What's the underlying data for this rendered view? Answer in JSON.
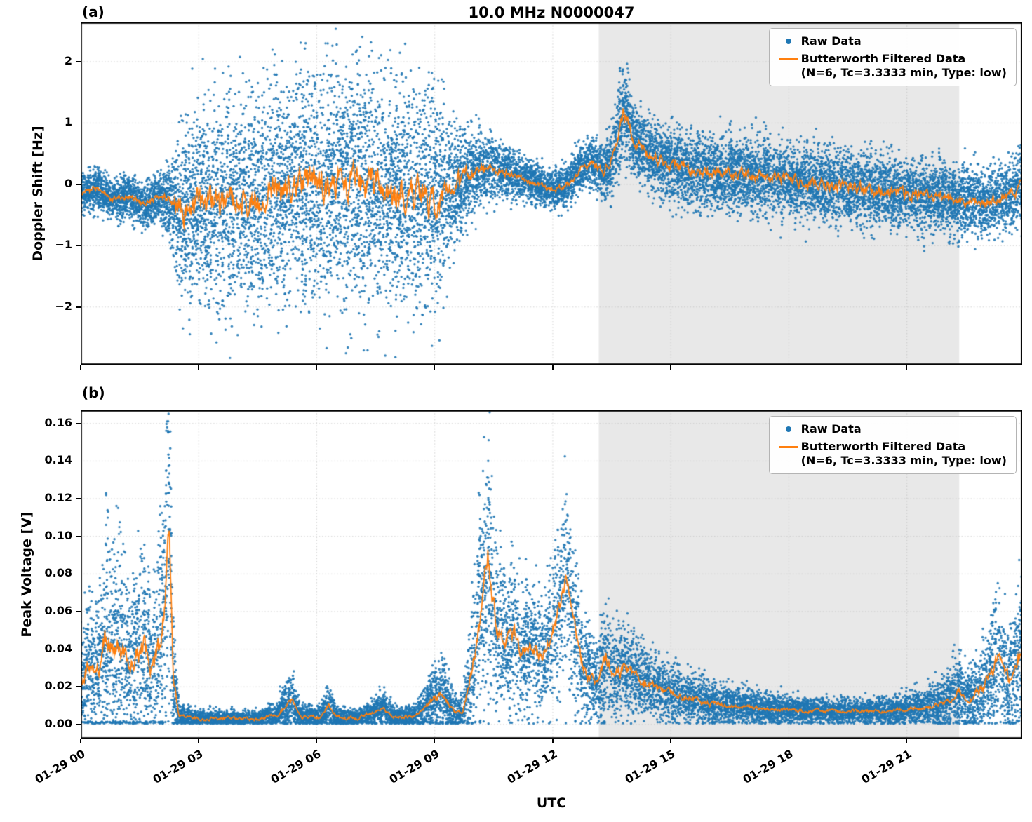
{
  "figure": {
    "background": "#ffffff"
  },
  "chart_data": [
    {
      "type": "scatter+line",
      "panel_label": "(a)",
      "title": "10.0 MHz N0000047",
      "ylabel": "Doppler Shift [Hz]",
      "ylim": [
        -2.94,
        2.64
      ],
      "xlim": [
        0,
        23.93
      ],
      "yticks": [
        {
          "v": -2,
          "label": "−2"
        },
        {
          "v": -1,
          "label": "−1"
        },
        {
          "v": 0,
          "label": "0"
        },
        {
          "v": 1,
          "label": "1"
        },
        {
          "v": 2,
          "label": "2"
        }
      ],
      "xticks": [
        {
          "hour": 0,
          "label": "01-29 00"
        },
        {
          "hour": 3,
          "label": "01-29 03"
        },
        {
          "hour": 6,
          "label": "01-29 06"
        },
        {
          "hour": 9,
          "label": "01-29 09"
        },
        {
          "hour": 12,
          "label": "01-29 12"
        },
        {
          "hour": 15,
          "label": "01-29 15"
        },
        {
          "hour": 18,
          "label": "01-29 18"
        },
        {
          "hour": 21,
          "label": "01-29 21"
        }
      ],
      "show_x_labels": false,
      "shaded_region": {
        "start": 13.17,
        "end": 22.33,
        "color": "#e8e8e8"
      },
      "legend": {
        "raw_label": "Raw Data",
        "filtered_label": "Butterworth Filtered Data",
        "filtered_sublabel": "(N=6, Tc=3.3333 min, Type: low)"
      },
      "colors": {
        "raw": "#1f77b4",
        "filtered": "#ff7f0e"
      },
      "scatter_points": 16000,
      "marker_radius": 1.7,
      "seed": 1337,
      "line_step": 0.015,
      "line_jitter_scale": 0.4,
      "line_jitter_floor": 0.06,
      "value_floor": null,
      "envelope": [
        [
          0.0,
          -0.15,
          0.15
        ],
        [
          0.4,
          -0.05,
          0.18
        ],
        [
          0.8,
          -0.25,
          0.16
        ],
        [
          1.2,
          -0.18,
          0.18
        ],
        [
          1.6,
          -0.35,
          0.18
        ],
        [
          2.0,
          -0.2,
          0.2
        ],
        [
          2.3,
          -0.3,
          0.3
        ],
        [
          2.6,
          -0.45,
          0.7
        ],
        [
          3.0,
          -0.35,
          0.8
        ],
        [
          3.5,
          -0.3,
          0.85
        ],
        [
          4.0,
          -0.3,
          0.8
        ],
        [
          4.5,
          -0.2,
          0.8
        ],
        [
          5.0,
          -0.1,
          0.85
        ],
        [
          5.5,
          0.0,
          0.9
        ],
        [
          6.0,
          -0.05,
          0.95
        ],
        [
          6.5,
          0.0,
          0.9
        ],
        [
          7.0,
          -0.05,
          0.95
        ],
        [
          7.5,
          0.0,
          0.95
        ],
        [
          8.0,
          -0.1,
          0.9
        ],
        [
          8.5,
          -0.2,
          0.85
        ],
        [
          9.0,
          -0.25,
          0.8
        ],
        [
          9.3,
          -0.15,
          0.65
        ],
        [
          9.6,
          0.05,
          0.45
        ],
        [
          10.0,
          0.2,
          0.32
        ],
        [
          10.4,
          0.25,
          0.26
        ],
        [
          10.8,
          0.2,
          0.22
        ],
        [
          11.2,
          0.1,
          0.18
        ],
        [
          11.6,
          0.0,
          0.16
        ],
        [
          12.0,
          -0.1,
          0.15
        ],
        [
          12.4,
          0.0,
          0.17
        ],
        [
          12.7,
          0.25,
          0.2
        ],
        [
          13.0,
          0.35,
          0.2
        ],
        [
          13.3,
          0.2,
          0.2
        ],
        [
          13.55,
          0.45,
          0.3
        ],
        [
          13.8,
          1.25,
          0.4
        ],
        [
          14.0,
          0.8,
          0.3
        ],
        [
          14.25,
          0.6,
          0.28
        ],
        [
          14.5,
          0.45,
          0.3
        ],
        [
          15.0,
          0.3,
          0.3
        ],
        [
          15.5,
          0.25,
          0.3
        ],
        [
          16.0,
          0.2,
          0.3
        ],
        [
          16.5,
          0.17,
          0.3
        ],
        [
          17.0,
          0.14,
          0.3
        ],
        [
          17.5,
          0.1,
          0.3
        ],
        [
          18.0,
          0.06,
          0.3
        ],
        [
          18.5,
          0.03,
          0.3
        ],
        [
          19.0,
          0.0,
          0.3
        ],
        [
          19.5,
          -0.05,
          0.3
        ],
        [
          20.0,
          -0.1,
          0.3
        ],
        [
          20.5,
          -0.12,
          0.3
        ],
        [
          21.0,
          -0.15,
          0.28
        ],
        [
          21.5,
          -0.18,
          0.28
        ],
        [
          22.0,
          -0.2,
          0.28
        ],
        [
          22.5,
          -0.25,
          0.27
        ],
        [
          23.0,
          -0.3,
          0.26
        ],
        [
          23.5,
          -0.2,
          0.28
        ],
        [
          23.93,
          -0.05,
          0.3
        ]
      ]
    },
    {
      "type": "scatter+line",
      "panel_label": "(b)",
      "xlabel": "UTC",
      "ylabel": "Peak Voltage [V]",
      "ylim": [
        -0.0075,
        0.167
      ],
      "xlim": [
        0,
        23.93
      ],
      "yticks": [
        {
          "v": 0.0,
          "label": "0.00"
        },
        {
          "v": 0.02,
          "label": "0.02"
        },
        {
          "v": 0.04,
          "label": "0.04"
        },
        {
          "v": 0.06,
          "label": "0.06"
        },
        {
          "v": 0.08,
          "label": "0.08"
        },
        {
          "v": 0.1,
          "label": "0.10"
        },
        {
          "v": 0.12,
          "label": "0.12"
        },
        {
          "v": 0.14,
          "label": "0.14"
        },
        {
          "v": 0.16,
          "label": "0.16"
        }
      ],
      "xticks": [
        {
          "hour": 0,
          "label": "01-29 00"
        },
        {
          "hour": 3,
          "label": "01-29 03"
        },
        {
          "hour": 6,
          "label": "01-29 06"
        },
        {
          "hour": 9,
          "label": "01-29 09"
        },
        {
          "hour": 12,
          "label": "01-29 12"
        },
        {
          "hour": 15,
          "label": "01-29 15"
        },
        {
          "hour": 18,
          "label": "01-29 18"
        },
        {
          "hour": 21,
          "label": "01-29 21"
        }
      ],
      "show_x_labels": true,
      "shaded_region": {
        "start": 13.17,
        "end": 22.33,
        "color": "#e8e8e8"
      },
      "legend": {
        "raw_label": "Raw Data",
        "filtered_label": "Butterworth Filtered Data",
        "filtered_sublabel": "(N=6, Tc=3.3333 min, Type: low)"
      },
      "colors": {
        "raw": "#1f77b4",
        "filtered": "#ff7f0e"
      },
      "scatter_points": 14000,
      "marker_radius": 1.7,
      "seed": 4242,
      "line_step": 0.015,
      "line_jitter_scale": 0.3,
      "line_jitter_floor": 0.0012,
      "value_floor": 0.0004,
      "envelope": [
        [
          0.0,
          0.02,
          0.015
        ],
        [
          0.2,
          0.03,
          0.02
        ],
        [
          0.45,
          0.028,
          0.02
        ],
        [
          0.6,
          0.045,
          0.028
        ],
        [
          0.8,
          0.04,
          0.028
        ],
        [
          1.0,
          0.045,
          0.03
        ],
        [
          1.2,
          0.03,
          0.02
        ],
        [
          1.4,
          0.035,
          0.025
        ],
        [
          1.6,
          0.04,
          0.028
        ],
        [
          1.8,
          0.03,
          0.02
        ],
        [
          2.0,
          0.04,
          0.03
        ],
        [
          2.15,
          0.07,
          0.04
        ],
        [
          2.25,
          0.105,
          0.045
        ],
        [
          2.35,
          0.025,
          0.018
        ],
        [
          2.5,
          0.0045,
          0.003
        ],
        [
          3.0,
          0.003,
          0.002
        ],
        [
          3.5,
          0.003,
          0.002
        ],
        [
          4.0,
          0.003,
          0.002
        ],
        [
          4.5,
          0.003,
          0.002
        ],
        [
          5.0,
          0.005,
          0.0035
        ],
        [
          5.35,
          0.013,
          0.008
        ],
        [
          5.6,
          0.004,
          0.003
        ],
        [
          6.1,
          0.004,
          0.003
        ],
        [
          6.3,
          0.01,
          0.006
        ],
        [
          6.5,
          0.004,
          0.003
        ],
        [
          7.0,
          0.003,
          0.002
        ],
        [
          7.7,
          0.009,
          0.005
        ],
        [
          7.95,
          0.004,
          0.003
        ],
        [
          8.5,
          0.004,
          0.003
        ],
        [
          8.95,
          0.013,
          0.008
        ],
        [
          9.2,
          0.017,
          0.01
        ],
        [
          9.45,
          0.007,
          0.005
        ],
        [
          9.7,
          0.006,
          0.004
        ],
        [
          9.95,
          0.03,
          0.018
        ],
        [
          10.15,
          0.06,
          0.03
        ],
        [
          10.35,
          0.088,
          0.033
        ],
        [
          10.55,
          0.055,
          0.022
        ],
        [
          10.8,
          0.042,
          0.017
        ],
        [
          11.0,
          0.05,
          0.02
        ],
        [
          11.2,
          0.038,
          0.015
        ],
        [
          11.45,
          0.042,
          0.017
        ],
        [
          11.7,
          0.035,
          0.015
        ],
        [
          11.95,
          0.045,
          0.018
        ],
        [
          12.15,
          0.06,
          0.022
        ],
        [
          12.33,
          0.082,
          0.026
        ],
        [
          12.5,
          0.055,
          0.02
        ],
        [
          12.7,
          0.035,
          0.015
        ],
        [
          12.95,
          0.025,
          0.012
        ],
        [
          13.15,
          0.02,
          0.011
        ],
        [
          13.35,
          0.035,
          0.017
        ],
        [
          13.55,
          0.025,
          0.012
        ],
        [
          13.8,
          0.03,
          0.013
        ],
        [
          14.05,
          0.026,
          0.011
        ],
        [
          14.35,
          0.022,
          0.01
        ],
        [
          14.7,
          0.019,
          0.009
        ],
        [
          15.0,
          0.017,
          0.008
        ],
        [
          15.5,
          0.014,
          0.007
        ],
        [
          16.0,
          0.011,
          0.006
        ],
        [
          16.5,
          0.01,
          0.005
        ],
        [
          17.0,
          0.009,
          0.0045
        ],
        [
          17.5,
          0.008,
          0.004
        ],
        [
          18.0,
          0.0075,
          0.0038
        ],
        [
          18.5,
          0.007,
          0.0035
        ],
        [
          19.0,
          0.007,
          0.0035
        ],
        [
          19.5,
          0.0068,
          0.0034
        ],
        [
          20.0,
          0.007,
          0.0035
        ],
        [
          20.5,
          0.0072,
          0.0036
        ],
        [
          21.0,
          0.008,
          0.004
        ],
        [
          21.5,
          0.009,
          0.005
        ],
        [
          22.0,
          0.012,
          0.007
        ],
        [
          22.3,
          0.017,
          0.01
        ],
        [
          22.6,
          0.013,
          0.008
        ],
        [
          23.0,
          0.021,
          0.013
        ],
        [
          23.3,
          0.034,
          0.019
        ],
        [
          23.6,
          0.024,
          0.014
        ],
        [
          23.93,
          0.04,
          0.02
        ]
      ]
    }
  ]
}
